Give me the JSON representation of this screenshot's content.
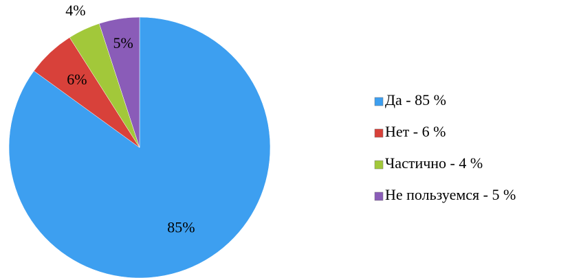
{
  "chart_data": {
    "type": "pie",
    "categories": [
      "Да - 85 %",
      "Нет - 6 %",
      "Частично - 4 %",
      "Не пользуемся - 5 %"
    ],
    "values": [
      85,
      6,
      4,
      5
    ],
    "value_labels": [
      "85%",
      "6%",
      "4%",
      "5%"
    ],
    "colors": [
      "#3d9ff0",
      "#d8413a",
      "#a2c83a",
      "#8a5cb8"
    ],
    "legend": "right"
  }
}
